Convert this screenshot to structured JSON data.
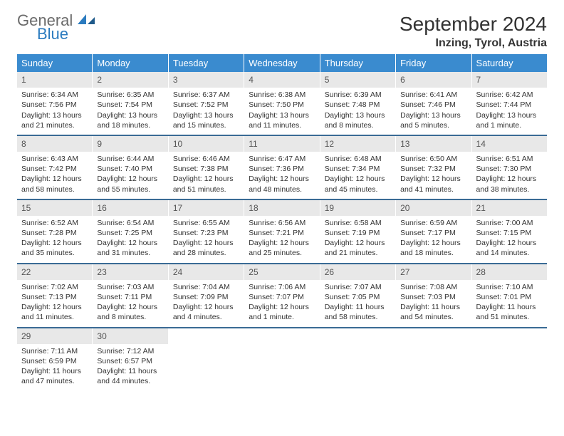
{
  "brand": {
    "word1": "General",
    "word2": "Blue"
  },
  "title": "September 2024",
  "location": "Inzing, Tyrol, Austria",
  "colors": {
    "header_bg": "#3a8bcf",
    "header_text": "#ffffff",
    "week_divider": "#3a6b95",
    "daynum_bg": "#e8e8e8",
    "body_text": "#333333",
    "logo_gray": "#6b6b6b",
    "logo_blue": "#2b7bbf",
    "page_bg": "#ffffff"
  },
  "typography": {
    "title_fontsize_pt": 21,
    "location_fontsize_pt": 12,
    "dayheader_fontsize_pt": 10,
    "cell_fontsize_pt": 8
  },
  "layout": {
    "columns": 7,
    "rows": 5,
    "first_weekday": "Sunday"
  },
  "day_headers": [
    "Sunday",
    "Monday",
    "Tuesday",
    "Wednesday",
    "Thursday",
    "Friday",
    "Saturday"
  ],
  "days": [
    {
      "n": "1",
      "sunrise": "Sunrise: 6:34 AM",
      "sunset": "Sunset: 7:56 PM",
      "daylight": "Daylight: 13 hours and 21 minutes."
    },
    {
      "n": "2",
      "sunrise": "Sunrise: 6:35 AM",
      "sunset": "Sunset: 7:54 PM",
      "daylight": "Daylight: 13 hours and 18 minutes."
    },
    {
      "n": "3",
      "sunrise": "Sunrise: 6:37 AM",
      "sunset": "Sunset: 7:52 PM",
      "daylight": "Daylight: 13 hours and 15 minutes."
    },
    {
      "n": "4",
      "sunrise": "Sunrise: 6:38 AM",
      "sunset": "Sunset: 7:50 PM",
      "daylight": "Daylight: 13 hours and 11 minutes."
    },
    {
      "n": "5",
      "sunrise": "Sunrise: 6:39 AM",
      "sunset": "Sunset: 7:48 PM",
      "daylight": "Daylight: 13 hours and 8 minutes."
    },
    {
      "n": "6",
      "sunrise": "Sunrise: 6:41 AM",
      "sunset": "Sunset: 7:46 PM",
      "daylight": "Daylight: 13 hours and 5 minutes."
    },
    {
      "n": "7",
      "sunrise": "Sunrise: 6:42 AM",
      "sunset": "Sunset: 7:44 PM",
      "daylight": "Daylight: 13 hours and 1 minute."
    },
    {
      "n": "8",
      "sunrise": "Sunrise: 6:43 AM",
      "sunset": "Sunset: 7:42 PM",
      "daylight": "Daylight: 12 hours and 58 minutes."
    },
    {
      "n": "9",
      "sunrise": "Sunrise: 6:44 AM",
      "sunset": "Sunset: 7:40 PM",
      "daylight": "Daylight: 12 hours and 55 minutes."
    },
    {
      "n": "10",
      "sunrise": "Sunrise: 6:46 AM",
      "sunset": "Sunset: 7:38 PM",
      "daylight": "Daylight: 12 hours and 51 minutes."
    },
    {
      "n": "11",
      "sunrise": "Sunrise: 6:47 AM",
      "sunset": "Sunset: 7:36 PM",
      "daylight": "Daylight: 12 hours and 48 minutes."
    },
    {
      "n": "12",
      "sunrise": "Sunrise: 6:48 AM",
      "sunset": "Sunset: 7:34 PM",
      "daylight": "Daylight: 12 hours and 45 minutes."
    },
    {
      "n": "13",
      "sunrise": "Sunrise: 6:50 AM",
      "sunset": "Sunset: 7:32 PM",
      "daylight": "Daylight: 12 hours and 41 minutes."
    },
    {
      "n": "14",
      "sunrise": "Sunrise: 6:51 AM",
      "sunset": "Sunset: 7:30 PM",
      "daylight": "Daylight: 12 hours and 38 minutes."
    },
    {
      "n": "15",
      "sunrise": "Sunrise: 6:52 AM",
      "sunset": "Sunset: 7:28 PM",
      "daylight": "Daylight: 12 hours and 35 minutes."
    },
    {
      "n": "16",
      "sunrise": "Sunrise: 6:54 AM",
      "sunset": "Sunset: 7:25 PM",
      "daylight": "Daylight: 12 hours and 31 minutes."
    },
    {
      "n": "17",
      "sunrise": "Sunrise: 6:55 AM",
      "sunset": "Sunset: 7:23 PM",
      "daylight": "Daylight: 12 hours and 28 minutes."
    },
    {
      "n": "18",
      "sunrise": "Sunrise: 6:56 AM",
      "sunset": "Sunset: 7:21 PM",
      "daylight": "Daylight: 12 hours and 25 minutes."
    },
    {
      "n": "19",
      "sunrise": "Sunrise: 6:58 AM",
      "sunset": "Sunset: 7:19 PM",
      "daylight": "Daylight: 12 hours and 21 minutes."
    },
    {
      "n": "20",
      "sunrise": "Sunrise: 6:59 AM",
      "sunset": "Sunset: 7:17 PM",
      "daylight": "Daylight: 12 hours and 18 minutes."
    },
    {
      "n": "21",
      "sunrise": "Sunrise: 7:00 AM",
      "sunset": "Sunset: 7:15 PM",
      "daylight": "Daylight: 12 hours and 14 minutes."
    },
    {
      "n": "22",
      "sunrise": "Sunrise: 7:02 AM",
      "sunset": "Sunset: 7:13 PM",
      "daylight": "Daylight: 12 hours and 11 minutes."
    },
    {
      "n": "23",
      "sunrise": "Sunrise: 7:03 AM",
      "sunset": "Sunset: 7:11 PM",
      "daylight": "Daylight: 12 hours and 8 minutes."
    },
    {
      "n": "24",
      "sunrise": "Sunrise: 7:04 AM",
      "sunset": "Sunset: 7:09 PM",
      "daylight": "Daylight: 12 hours and 4 minutes."
    },
    {
      "n": "25",
      "sunrise": "Sunrise: 7:06 AM",
      "sunset": "Sunset: 7:07 PM",
      "daylight": "Daylight: 12 hours and 1 minute."
    },
    {
      "n": "26",
      "sunrise": "Sunrise: 7:07 AM",
      "sunset": "Sunset: 7:05 PM",
      "daylight": "Daylight: 11 hours and 58 minutes."
    },
    {
      "n": "27",
      "sunrise": "Sunrise: 7:08 AM",
      "sunset": "Sunset: 7:03 PM",
      "daylight": "Daylight: 11 hours and 54 minutes."
    },
    {
      "n": "28",
      "sunrise": "Sunrise: 7:10 AM",
      "sunset": "Sunset: 7:01 PM",
      "daylight": "Daylight: 11 hours and 51 minutes."
    },
    {
      "n": "29",
      "sunrise": "Sunrise: 7:11 AM",
      "sunset": "Sunset: 6:59 PM",
      "daylight": "Daylight: 11 hours and 47 minutes."
    },
    {
      "n": "30",
      "sunrise": "Sunrise: 7:12 AM",
      "sunset": "Sunset: 6:57 PM",
      "daylight": "Daylight: 11 hours and 44 minutes."
    }
  ]
}
